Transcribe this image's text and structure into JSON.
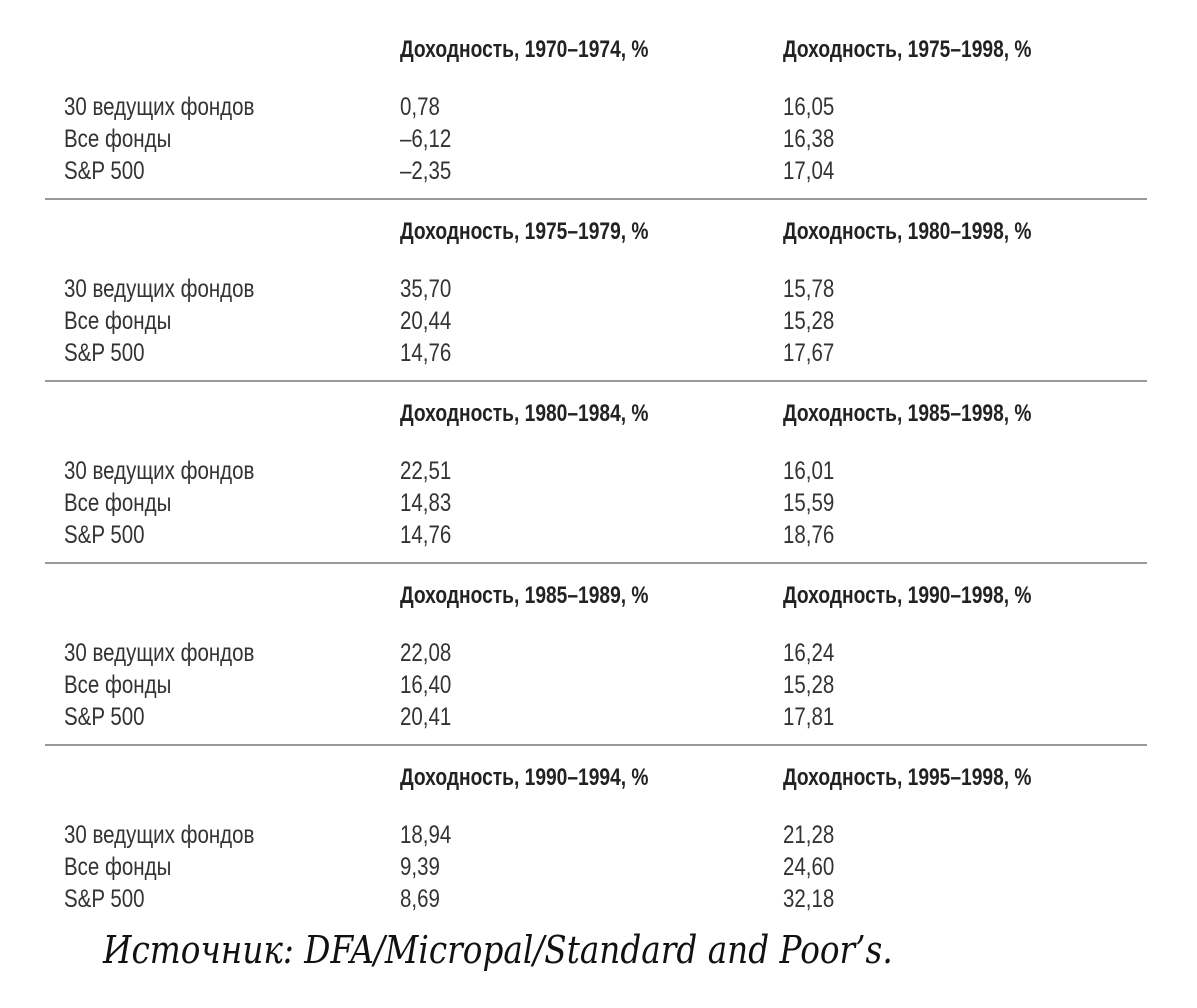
{
  "table": {
    "row_labels": [
      "30 ведущих фондов",
      "Все фонды",
      "S&P 500"
    ],
    "blocks": [
      {
        "headers": [
          "Доходность, 1970–1974, %",
          "Доходность, 1975–1998, %"
        ],
        "col1": [
          "0,78",
          "–6,12",
          "–2,35"
        ],
        "col2": [
          "16,05",
          "16,38",
          "17,04"
        ]
      },
      {
        "headers": [
          "Доходность, 1975–1979, %",
          "Доходность, 1980–1998, %"
        ],
        "col1": [
          "35,70",
          "20,44",
          "14,76"
        ],
        "col2": [
          "15,78",
          "15,28",
          "17,67"
        ]
      },
      {
        "headers": [
          "Доходность, 1980–1984, %",
          "Доходность, 1985–1998, %"
        ],
        "col1": [
          "22,51",
          "14,83",
          "14,76"
        ],
        "col2": [
          "16,01",
          "15,59",
          "18,76"
        ]
      },
      {
        "headers": [
          "Доходность, 1985–1989, %",
          "Доходность, 1990–1998, %"
        ],
        "col1": [
          "22,08",
          "16,40",
          "20,41"
        ],
        "col2": [
          "16,24",
          "15,28",
          "17,81"
        ]
      },
      {
        "headers": [
          "Доходность, 1990–1994, %",
          "Доходность, 1995–1998, %"
        ],
        "col1": [
          "18,94",
          "9,39",
          "8,69"
        ],
        "col2": [
          "21,28",
          "24,60",
          "32,18"
        ]
      }
    ]
  },
  "source": "Источник: DFA/Micropal/Standard and Poor’s."
}
